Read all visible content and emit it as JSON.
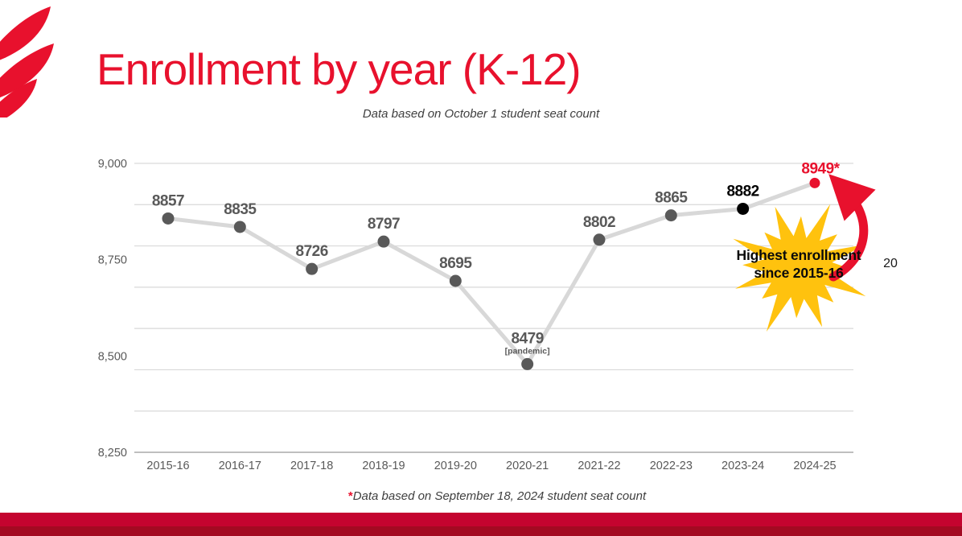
{
  "slide": {
    "title": "Enrollment by year (K-12)",
    "subtitle": "Data based on October 1 student seat count",
    "footnote_asterisk": "*",
    "footnote_text": "Data based on September 18, 2024 student seat count",
    "page_number": "20"
  },
  "annotation": {
    "burst_line1": "Highest enrollment",
    "burst_line2": "since 2015-16"
  },
  "colors": {
    "brand_red": "#E8112D",
    "footer_red": "#C4042F",
    "footer_dark_red": "#A30A22",
    "burst_yellow": "#FFC20E",
    "line_gray": "#D8D8D8",
    "grid_gray": "#D9D9D9",
    "axis_gray": "#BFBFBF",
    "point_gray": "#595959",
    "point_black": "#000000",
    "tick_gray": "#595959"
  },
  "chart_data": {
    "type": "line",
    "title": "Data based on October 1 student seat count",
    "xlabel": "",
    "ylabel": "",
    "categories": [
      "2015-16",
      "2016-17",
      "2017-18",
      "2018-19",
      "2019-20",
      "2020-21",
      "2021-22",
      "2022-23",
      "2023-24",
      "2024-25"
    ],
    "values": [
      8857,
      8835,
      8726,
      8797,
      8695,
      8479,
      8802,
      8865,
      8882,
      8949
    ],
    "point_labels": [
      "8857",
      "8835",
      "8726",
      "8797",
      "8695",
      "8479",
      "8802",
      "8865",
      "8882",
      "8949*"
    ],
    "point_sublabels": [
      "",
      "",
      "",
      "",
      "",
      "[pandemic]",
      "",
      "",
      "",
      ""
    ],
    "point_colors": [
      "gray",
      "gray",
      "gray",
      "gray",
      "gray",
      "gray",
      "gray",
      "gray",
      "black",
      "red"
    ],
    "ylim": [
      8250,
      9000
    ],
    "y_ticks": [
      {
        "label": "9,000",
        "value": 9000
      },
      {
        "label": "8,750",
        "value": 8750
      },
      {
        "label": "8,500",
        "value": 8500
      },
      {
        "label": "8,250",
        "value": 8250
      }
    ],
    "grid": true,
    "gridline_count": 8,
    "legend": "none"
  }
}
